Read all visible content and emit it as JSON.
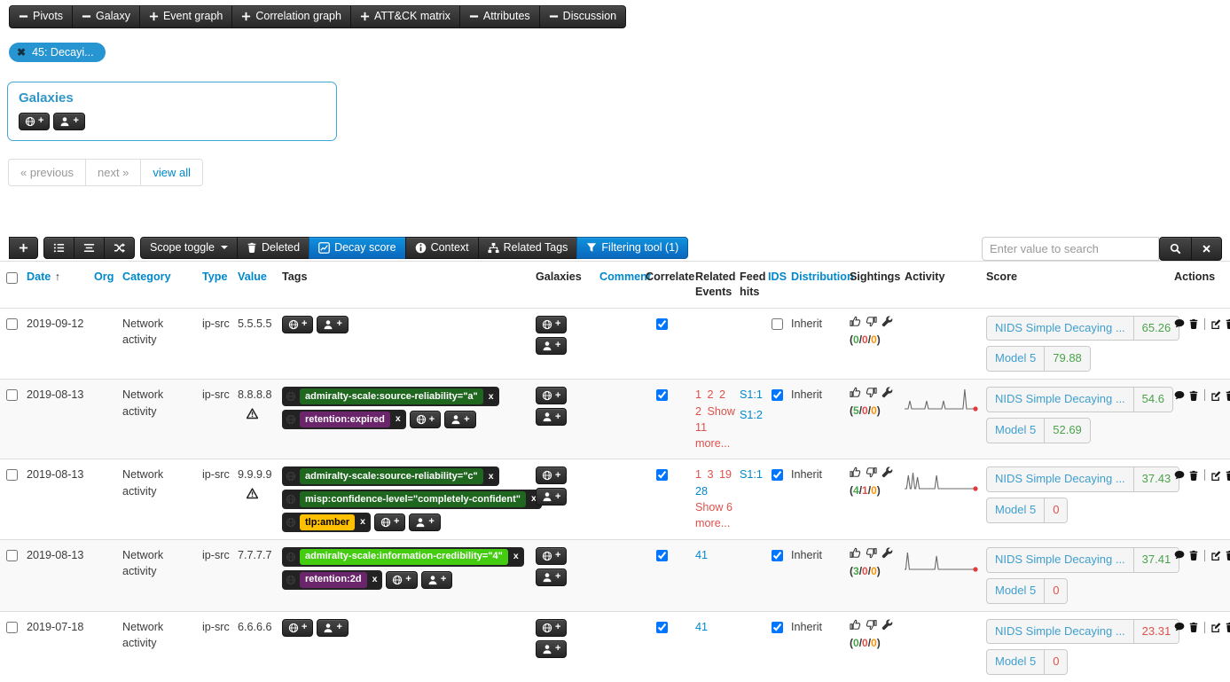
{
  "navbar": {
    "items": [
      {
        "icon": "minus",
        "label": "Pivots"
      },
      {
        "icon": "minus",
        "label": "Galaxy"
      },
      {
        "icon": "plus",
        "label": "Event graph"
      },
      {
        "icon": "plus",
        "label": "Correlation graph"
      },
      {
        "icon": "plus",
        "label": "ATT&CK matrix"
      },
      {
        "icon": "minus",
        "label": "Attributes"
      },
      {
        "icon": "minus",
        "label": "Discussion"
      }
    ]
  },
  "filter_pill": {
    "label": "45: Decayi..."
  },
  "galaxies_panel": {
    "title": "Galaxies",
    "add_buttons": [
      {
        "icon": "globe",
        "name": "add-galaxy-button"
      },
      {
        "icon": "person",
        "name": "add-local-galaxy-button"
      }
    ]
  },
  "pagination": {
    "previous": "« previous",
    "next": "next »",
    "view_all": "view all"
  },
  "toolbar": {
    "add_button": {
      "icon": "plus",
      "name": "add-attribute-button"
    },
    "view_buttons": [
      {
        "icon": "list",
        "name": "list-view-button"
      },
      {
        "icon": "align",
        "name": "condensed-view-button"
      },
      {
        "icon": "shuffle",
        "name": "shuffle-view-button"
      }
    ],
    "action_buttons": [
      {
        "label": "Scope toggle",
        "caret": true,
        "name": "scope-toggle-button"
      },
      {
        "label": "Deleted",
        "icon": "trash",
        "name": "deleted-button"
      },
      {
        "label": "Decay score",
        "icon": "chart",
        "active": true,
        "name": "decay-score-button"
      },
      {
        "label": "Context",
        "icon": "info",
        "name": "context-button"
      },
      {
        "label": "Related Tags",
        "icon": "sitemap",
        "name": "related-tags-button"
      },
      {
        "label": "Filtering tool (1)",
        "icon": "funnel",
        "active": true,
        "name": "filtering-tool-button"
      }
    ],
    "search": {
      "placeholder": "Enter value to search"
    }
  },
  "colors": {
    "link_blue": "#0088cc",
    "related_red": "#dd514c",
    "score_good": "#4aa34a",
    "score_bad": "#dd514c",
    "sighting_orange": "#f89406",
    "accent_blue": "#2795d1",
    "panel_border": "#41a7d6"
  },
  "table": {
    "headers": [
      {
        "name": "select",
        "type": "checkbox",
        "label": ""
      },
      {
        "name": "date",
        "label": "Date",
        "sortable": true,
        "sort_arrow": "↑"
      },
      {
        "name": "org",
        "label": "Org",
        "sortable": true
      },
      {
        "name": "category",
        "label": "Category",
        "sortable": true
      },
      {
        "name": "type",
        "label": "Type",
        "sortable": true
      },
      {
        "name": "value",
        "label": "Value",
        "sortable": true
      },
      {
        "name": "tags",
        "label": "Tags"
      },
      {
        "name": "galaxies",
        "label": "Galaxies"
      },
      {
        "name": "comment",
        "label": "Comment",
        "sortable": true
      },
      {
        "name": "correlate",
        "label": "Correlate"
      },
      {
        "name": "related",
        "label": "Related Events"
      },
      {
        "name": "feed",
        "label": "Feed hits"
      },
      {
        "name": "ids",
        "label": "IDS",
        "sortable": true
      },
      {
        "name": "distribution",
        "label": "Distribution",
        "sortable": true
      },
      {
        "name": "sightings",
        "label": "Sightings"
      },
      {
        "name": "activity",
        "label": "Activity"
      },
      {
        "name": "score",
        "label": "Score"
      },
      {
        "name": "actions",
        "label": "Actions"
      }
    ],
    "row_actions": [
      {
        "icon": "comment",
        "name": "comment-action"
      },
      {
        "icon": "trash",
        "name": "trash-action"
      },
      {
        "divider": true
      },
      {
        "icon": "edit",
        "name": "edit-action"
      },
      {
        "icon": "trash",
        "name": "delete-action"
      }
    ],
    "rows": [
      {
        "date": "2019-09-12",
        "org": "",
        "category": "Network activity",
        "type": "ip-src",
        "value": "5.5.5.5",
        "warning": false,
        "tags": [],
        "correlate": true,
        "related": [],
        "feed_hits": [],
        "ids": false,
        "distribution": "Inherit",
        "sightings": {
          "counts": [
            0,
            0,
            0
          ]
        },
        "activity": null,
        "scores": [
          {
            "model": "NIDS Simple Decaying ...",
            "value": "65.26",
            "state": "good"
          },
          {
            "model": "Model 5",
            "value": "79.88",
            "state": "good"
          }
        ]
      },
      {
        "date": "2019-08-13",
        "org": "",
        "category": "Network activity",
        "type": "ip-src",
        "value": "8.8.8.8",
        "warning": true,
        "tags": [
          {
            "label": "admiralty-scale:source-reliability=\"a\"",
            "bg": "#1f661f",
            "fg": "#ffffff"
          },
          {
            "label": "retention:expired",
            "bg": "#6b256b",
            "fg": "#ffffff"
          }
        ],
        "correlate": true,
        "related": [
          {
            "label": "1",
            "color": "red"
          },
          {
            "label": "2",
            "color": "red"
          },
          {
            "label": "2",
            "color": "red"
          },
          {
            "label": "2",
            "color": "red"
          },
          {
            "label": "Show 11 more...",
            "color": "red"
          }
        ],
        "feed_hits": [
          "S1:1",
          "S1:2"
        ],
        "ids": true,
        "distribution": "Inherit",
        "sightings": {
          "counts": [
            5,
            0,
            0
          ]
        },
        "activity": {
          "spikes": [
            [
              0.07,
              9
            ],
            [
              0.29,
              9
            ],
            [
              0.51,
              9
            ],
            [
              0.79,
              22
            ]
          ],
          "end_dot": true
        },
        "scores": [
          {
            "model": "NIDS Simple Decaying ...",
            "value": "54.6",
            "state": "good"
          },
          {
            "model": "Model 5",
            "value": "52.69",
            "state": "good"
          }
        ]
      },
      {
        "date": "2019-08-13",
        "org": "",
        "category": "Network activity",
        "type": "ip-src",
        "value": "9.9.9.9",
        "warning": true,
        "tags": [
          {
            "label": "admiralty-scale:source-reliability=\"c\"",
            "bg": "#1f661f",
            "fg": "#ffffff"
          },
          {
            "label": "misp:confidence-level=\"completely-confident\"",
            "bg": "#1f661f",
            "fg": "#ffffff"
          },
          {
            "label": "tlp:amber",
            "bg": "#FFC000",
            "fg": "#000000"
          }
        ],
        "correlate": true,
        "related": [
          {
            "label": "1",
            "color": "red"
          },
          {
            "label": "3",
            "color": "red"
          },
          {
            "label": "19",
            "color": "red"
          },
          {
            "label": "28",
            "color": "blue"
          },
          {
            "label": "Show 6 more...",
            "color": "red"
          }
        ],
        "feed_hits": [
          "S1:1"
        ],
        "ids": true,
        "distribution": "Inherit",
        "sightings": {
          "counts": [
            4,
            1,
            0
          ]
        },
        "activity": {
          "spikes": [
            [
              0.05,
              15
            ],
            [
              0.11,
              18
            ],
            [
              0.17,
              13
            ],
            [
              0.42,
              15
            ]
          ],
          "end_dot": true
        },
        "scores": [
          {
            "model": "NIDS Simple Decaying ...",
            "value": "37.43",
            "state": "good"
          },
          {
            "model": "Model 5",
            "value": "0",
            "state": "bad"
          }
        ]
      },
      {
        "date": "2019-08-13",
        "org": "",
        "category": "Network activity",
        "type": "ip-src",
        "value": "7.7.7.7",
        "warning": false,
        "tags": [
          {
            "label": "admiralty-scale:information-credibility=\"4\"",
            "bg": "#44cc11",
            "fg": "#ffffff"
          },
          {
            "label": "retention:2d",
            "bg": "#6b256b",
            "fg": "#ffffff"
          }
        ],
        "correlate": true,
        "related": [
          {
            "label": "41",
            "color": "blue"
          }
        ],
        "feed_hits": [],
        "ids": true,
        "distribution": "Inherit",
        "sightings": {
          "counts": [
            3,
            0,
            0
          ]
        },
        "activity": {
          "spikes": [
            [
              0.04,
              19
            ],
            [
              0.42,
              15
            ]
          ],
          "end_dot": true
        },
        "scores": [
          {
            "model": "NIDS Simple Decaying ...",
            "value": "37.41",
            "state": "good"
          },
          {
            "model": "Model 5",
            "value": "0",
            "state": "bad"
          }
        ]
      },
      {
        "date": "2019-07-18",
        "org": "",
        "category": "Network activity",
        "type": "ip-src",
        "value": "6.6.6.6",
        "warning": false,
        "tags": [],
        "correlate": true,
        "related": [
          {
            "label": "41",
            "color": "blue"
          }
        ],
        "feed_hits": [],
        "ids": true,
        "distribution": "Inherit",
        "sightings": {
          "counts": [
            0,
            0,
            0
          ]
        },
        "activity": null,
        "scores": [
          {
            "model": "NIDS Simple Decaying ...",
            "value": "23.31",
            "state": "bad"
          },
          {
            "model": "Model 5",
            "value": "0",
            "state": "bad"
          }
        ]
      }
    ]
  }
}
